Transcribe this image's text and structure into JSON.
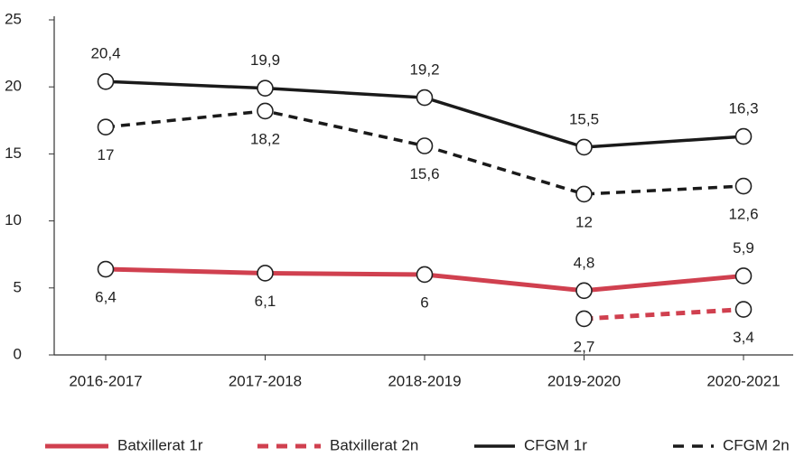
{
  "chart_data": {
    "type": "line",
    "categories": [
      "2016-2017",
      "2017-2018",
      "2018-2019",
      "2019-2020",
      "2020-2021"
    ],
    "series": [
      {
        "name": "Batxillerat 1r",
        "color": "#d0404f",
        "dash": false,
        "values": [
          6.4,
          6.1,
          6,
          4.8,
          5.9
        ],
        "value_labels": [
          "6,4",
          "6,1",
          "6",
          "4,8",
          "5,9"
        ]
      },
      {
        "name": "Batxillerat 2n",
        "color": "#d0404f",
        "dash": true,
        "values": [
          null,
          null,
          null,
          2.7,
          3.4
        ],
        "value_labels": [
          null,
          null,
          null,
          "2,7",
          "3,4"
        ]
      },
      {
        "name": "CFGM 1r",
        "color": "#1a1a1a",
        "dash": false,
        "values": [
          20.4,
          19.9,
          19.2,
          15.5,
          16.3
        ],
        "value_labels": [
          "20,4",
          "19,9",
          "19,2",
          "15,5",
          "16,3"
        ]
      },
      {
        "name": "CFGM 2n",
        "color": "#1a1a1a",
        "dash": true,
        "values": [
          17,
          18.2,
          15.6,
          12,
          12.6
        ],
        "value_labels": [
          "17",
          "18,2",
          "15,6",
          "12",
          "12,6"
        ]
      }
    ],
    "ylim": [
      0,
      25
    ],
    "yticks": [
      0,
      5,
      10,
      15,
      20,
      25
    ],
    "grid": false,
    "legend": "bottom"
  }
}
